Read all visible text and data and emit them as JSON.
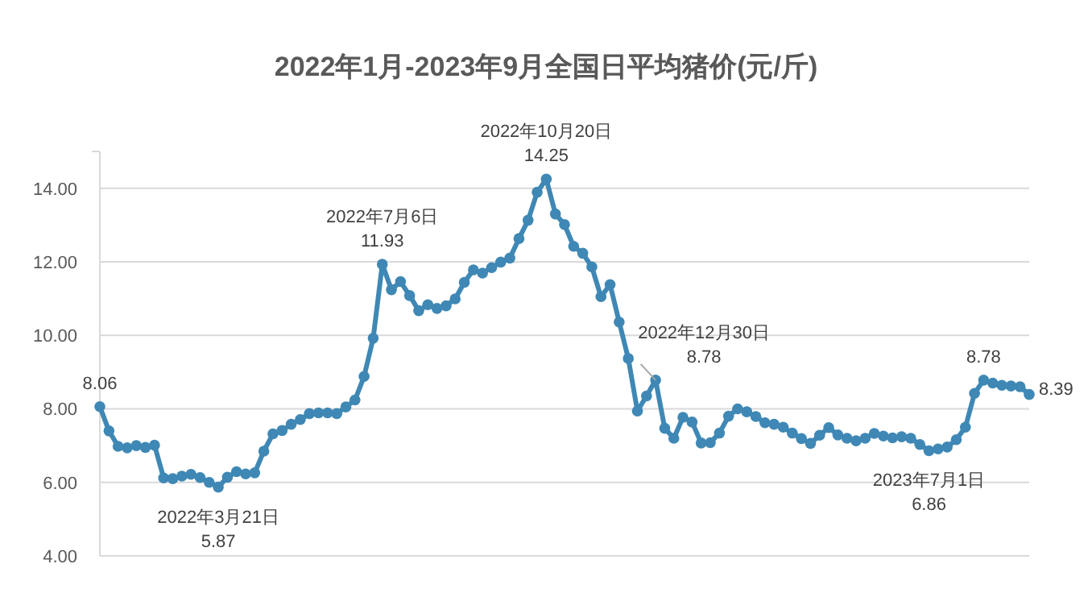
{
  "chart_data": {
    "type": "line",
    "title": "2022年1月-2023年9月全国日平均猪价(元/斤)",
    "marker": "circle",
    "line_style": "solid",
    "grid": "y",
    "tick_labels": "y",
    "ylim": [
      4,
      15
    ],
    "yticks": [
      {
        "value": 4,
        "label": "4.00"
      },
      {
        "value": 6,
        "label": "6.00"
      },
      {
        "value": 8,
        "label": "8.00"
      },
      {
        "value": 10,
        "label": "10.00"
      },
      {
        "value": 12,
        "label": "12.00"
      },
      {
        "value": 14,
        "label": "14.00"
      },
      {
        "value": 15,
        "label": null
      }
    ],
    "categories": [
      null,
      null,
      null,
      null,
      null,
      null,
      null,
      null,
      null,
      null,
      null,
      null,
      null,
      null,
      null,
      null,
      null,
      null,
      null,
      null,
      null,
      null,
      null,
      null,
      null,
      null,
      null,
      null,
      null,
      null,
      null,
      null,
      null,
      null,
      null,
      null,
      null,
      null,
      null,
      null,
      null,
      null,
      null,
      null,
      null,
      null,
      null,
      null,
      null,
      null,
      null,
      null,
      null,
      null,
      null,
      null,
      null,
      null,
      null,
      null,
      null,
      null,
      null,
      null,
      null,
      null,
      null,
      null,
      null,
      null,
      null,
      null,
      null,
      null,
      null,
      null,
      null,
      null,
      null,
      null,
      null,
      null,
      null,
      null,
      null,
      null,
      null,
      null,
      null,
      null,
      null,
      null,
      null,
      null,
      null,
      null,
      null,
      null,
      null,
      null,
      null,
      null,
      null
    ],
    "series": [
      {
        "color": "#3f88b5",
        "values": [
          8.06,
          7.4,
          6.98,
          6.94,
          7.0,
          6.95,
          7.01,
          6.12,
          6.1,
          6.17,
          6.22,
          6.13,
          6.0,
          5.87,
          6.14,
          6.29,
          6.23,
          6.26,
          6.85,
          7.32,
          7.41,
          7.58,
          7.71,
          7.87,
          7.89,
          7.89,
          7.87,
          8.05,
          8.24,
          8.88,
          9.92,
          11.93,
          11.24,
          11.46,
          11.08,
          10.67,
          10.83,
          10.73,
          10.8,
          10.99,
          11.44,
          11.78,
          11.69,
          11.84,
          11.99,
          12.1,
          12.63,
          13.13,
          13.89,
          14.25,
          13.3,
          13.01,
          12.42,
          12.23,
          11.86,
          11.05,
          11.38,
          10.36,
          9.37,
          7.94,
          8.35,
          8.78,
          7.47,
          7.2,
          7.77,
          7.64,
          7.07,
          7.08,
          7.34,
          7.8,
          8.0,
          7.92,
          7.79,
          7.62,
          7.58,
          7.5,
          7.34,
          7.19,
          7.06,
          7.28,
          7.49,
          7.29,
          7.2,
          7.13,
          7.2,
          7.33,
          7.26,
          7.21,
          7.24,
          7.2,
          7.03,
          6.86,
          6.91,
          6.96,
          7.16,
          7.5,
          8.42,
          8.78,
          8.7,
          8.64,
          8.62,
          8.6,
          8.39
        ],
        "value_labels": [
          "8.06",
          null,
          null,
          null,
          null,
          null,
          null,
          null,
          null,
          null,
          null,
          null,
          null,
          "2022年3月21日\n5.87",
          null,
          null,
          null,
          null,
          null,
          null,
          null,
          null,
          null,
          null,
          null,
          null,
          null,
          null,
          null,
          null,
          null,
          "2022年7月6日\n11.93",
          null,
          null,
          null,
          null,
          null,
          null,
          null,
          null,
          null,
          null,
          null,
          null,
          null,
          null,
          null,
          null,
          null,
          "2022年10月20日\n14.25",
          null,
          null,
          null,
          null,
          null,
          null,
          null,
          null,
          null,
          null,
          null,
          "2022年12月30日\n8.78",
          null,
          null,
          null,
          null,
          null,
          null,
          null,
          null,
          null,
          null,
          null,
          null,
          null,
          null,
          null,
          null,
          null,
          null,
          null,
          null,
          null,
          null,
          null,
          null,
          null,
          null,
          null,
          null,
          null,
          "2023年7月1日\n6.86",
          null,
          null,
          null,
          null,
          null,
          "8.78",
          null,
          null,
          null,
          null,
          "8.39"
        ]
      }
    ]
  }
}
